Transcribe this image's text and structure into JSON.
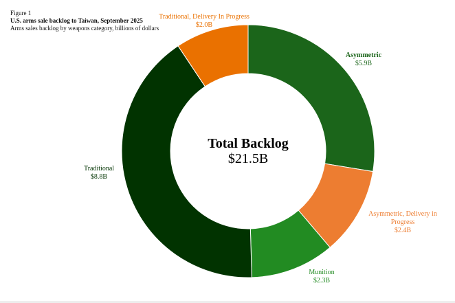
{
  "figure_label": "Figure 1",
  "title": "U.S. arms sale backlog to Taiwan, September 2025",
  "subtitle": "Arms sales backlog by weapons category, billions of dollars",
  "chart_data": {
    "type": "pie",
    "donut": true,
    "title": "U.S. arms sale backlog to Taiwan, September 2025",
    "center_title": "Total Backlog",
    "center_value": "$21.5B",
    "units": "billions of dollars",
    "slices": [
      {
        "name": "Asymmetric",
        "value": 5.9,
        "label": "$5.9B",
        "color": "#1b651a"
      },
      {
        "name": "Asymmetric, Delivery in Progress",
        "value": 2.4,
        "label": "$2.4B",
        "color": "#ed7d31"
      },
      {
        "name": "Munition",
        "value": 2.3,
        "label": "$2.3B",
        "color": "#228b22"
      },
      {
        "name": "Traditional",
        "value": 8.8,
        "label": "$8.8B",
        "color": "#013300"
      },
      {
        "name": "Traditional, Delivery In Progress",
        "value": 2.0,
        "label": "$2.0B",
        "color": "#ea7100"
      }
    ]
  }
}
